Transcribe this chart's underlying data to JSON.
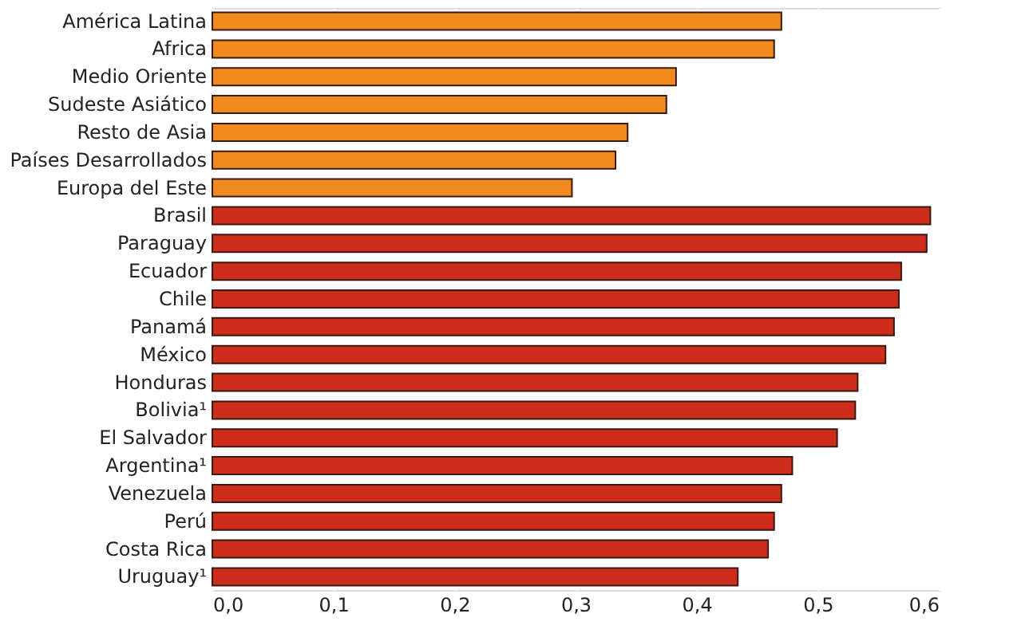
{
  "chart_data": {
    "type": "bar",
    "orientation": "horizontal",
    "categories": [
      "América Latina",
      "Africa",
      "Medio Oriente",
      "Sudeste Asiático",
      "Resto de Asia",
      "Países Desarrollados",
      "Europa del Este",
      "Brasil",
      "Paraguay",
      "Ecuador",
      "Chile",
      "Panamá",
      "México",
      "Honduras",
      "Bolivia¹",
      "El Salvador",
      "Argentina¹",
      "Venezuela",
      "Perú",
      "Costa Rica",
      "Uruguay¹"
    ],
    "values": [
      0.47,
      0.464,
      0.383,
      0.375,
      0.343,
      0.333,
      0.297,
      0.593,
      0.59,
      0.569,
      0.567,
      0.563,
      0.556,
      0.533,
      0.531,
      0.516,
      0.479,
      0.47,
      0.464,
      0.459,
      0.434
    ],
    "colors": [
      "#ee8a1e",
      "#ee8a1e",
      "#ee8a1e",
      "#ee8a1e",
      "#ee8a1e",
      "#ee8a1e",
      "#ee8a1e",
      "#cc2d1c",
      "#cc2d1c",
      "#cc2d1c",
      "#cc2d1c",
      "#cc2d1c",
      "#cc2d1c",
      "#cc2d1c",
      "#cc2d1c",
      "#cc2d1c",
      "#cc2d1c",
      "#cc2d1c",
      "#cc2d1c",
      "#cc2d1c",
      "#cc2d1c"
    ],
    "xlim": [
      0,
      0.6
    ],
    "xticks": [
      {
        "value": 0,
        "label": "0,0"
      },
      {
        "value": 0.1,
        "label": "0,1"
      },
      {
        "value": 0.2,
        "label": "0,2"
      },
      {
        "value": 0.3,
        "label": "0,3"
      },
      {
        "value": 0.4,
        "label": "0,4"
      },
      {
        "value": 0.5,
        "label": "0,5"
      },
      {
        "value": 0.6,
        "label": "0,6"
      }
    ],
    "grid": "x"
  }
}
